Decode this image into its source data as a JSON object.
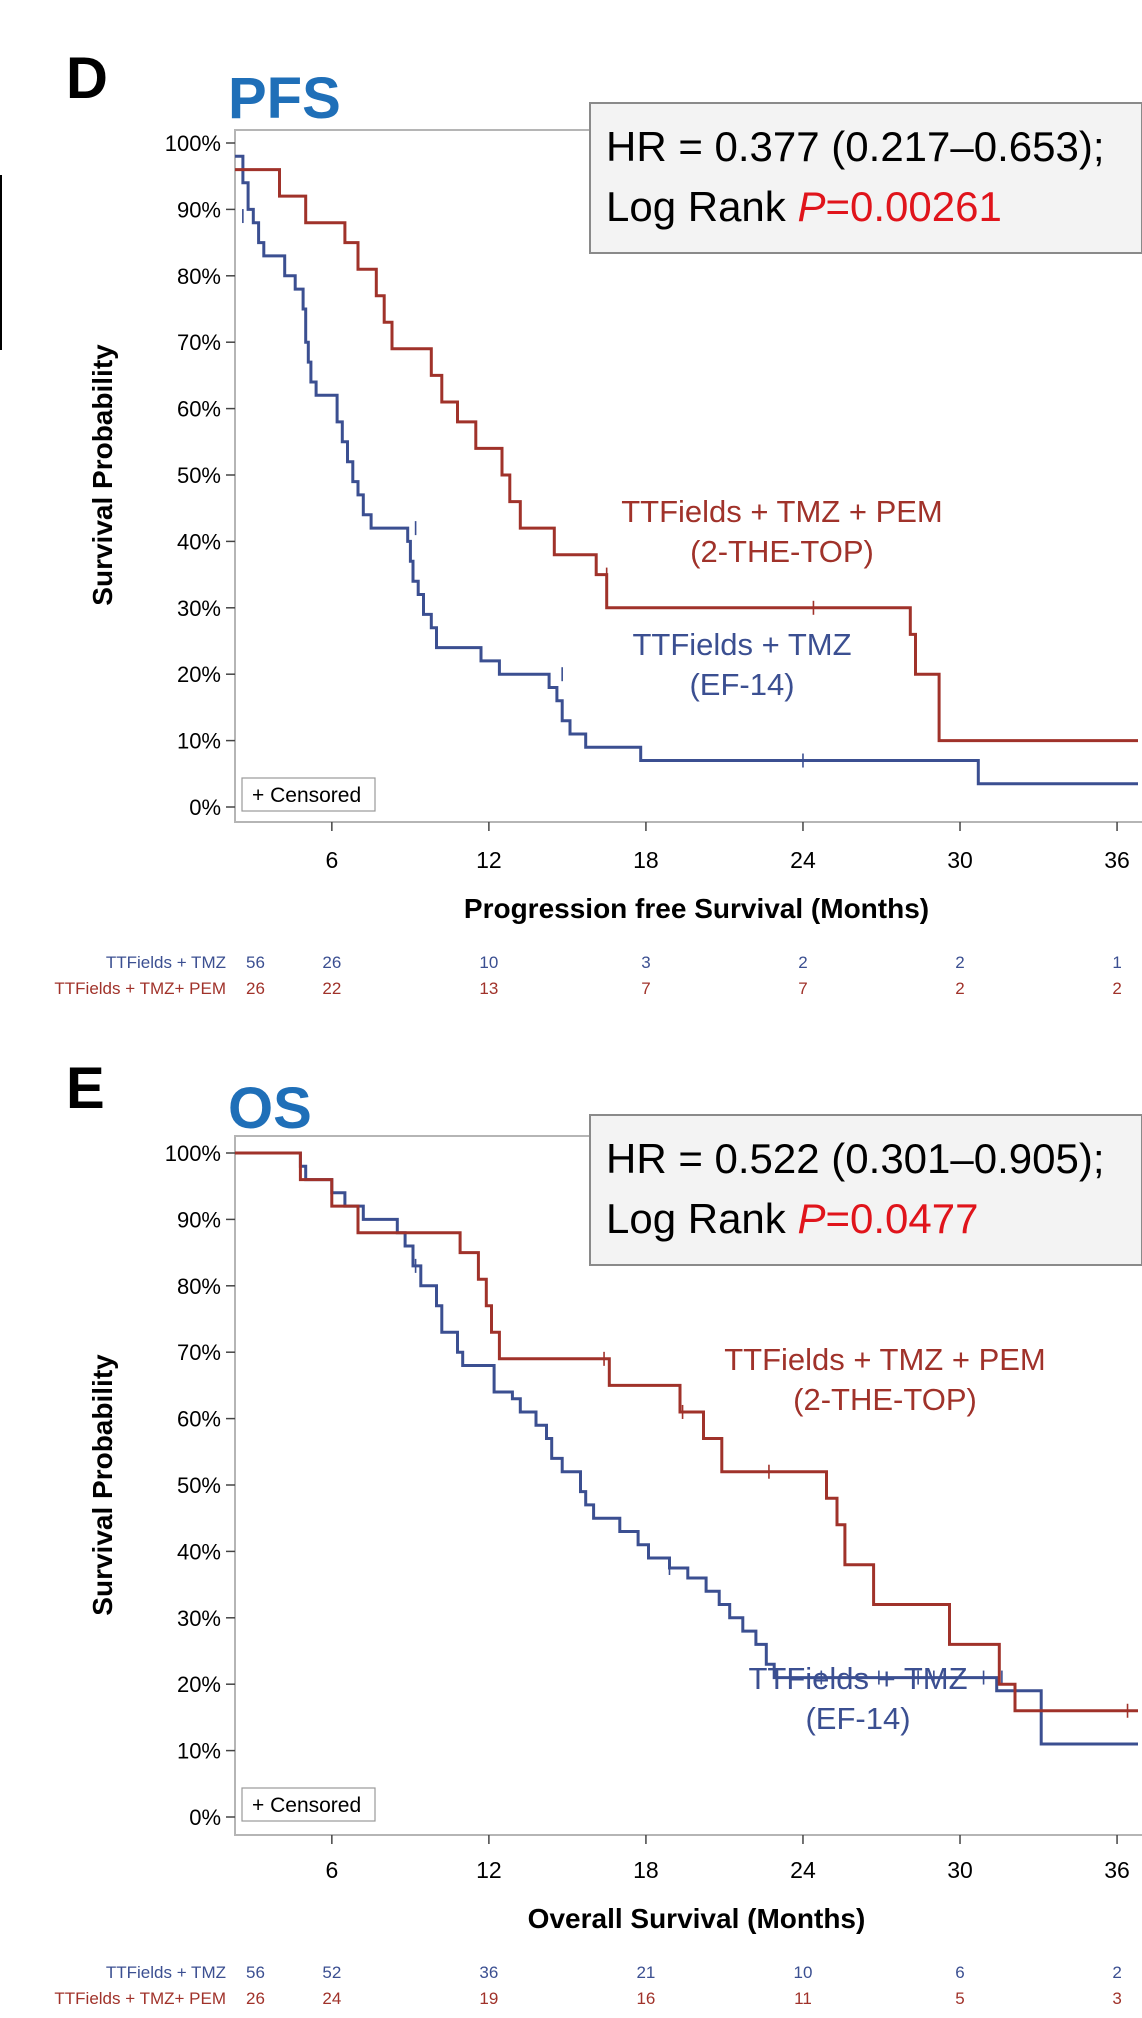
{
  "colors": {
    "series_blue": "#3b4f91",
    "series_red": "#a0322a",
    "title_blue": "#1f6fb8",
    "p_red": "#e0141b",
    "frame": "#b5b5b5",
    "box_fill": "#f3f3f3"
  },
  "chart_data": [
    {
      "type": "line",
      "panel_letter": "D",
      "title": "PFS",
      "xlabel": "Progression free Survival (Months)",
      "ylabel": "Survival Probability",
      "xlim": [
        2.3,
        36.8
      ],
      "ylim": [
        0,
        100
      ],
      "xticks": [
        6,
        12,
        18,
        24,
        30,
        36
      ],
      "yticks": [
        "0%",
        "10%",
        "20%",
        "30%",
        "40%",
        "50%",
        "60%",
        "70%",
        "80%",
        "90%",
        "100%"
      ],
      "grid": false,
      "stats": {
        "hr_text": "HR = 0.377 (0.217–0.653);",
        "logrank_label": "Log Rank ",
        "p_label": "P",
        "p_value": "=0.00261"
      },
      "censored_legend": "+ Censored",
      "series": [
        {
          "name": "TTFields + TMZ",
          "label_lines": [
            "TTFields + TMZ",
            "(EF-14)"
          ],
          "color": "#3b4f91",
          "steps": [
            [
              2.4,
              98
            ],
            [
              2.6,
              94
            ],
            [
              2.8,
              90
            ],
            [
              3.0,
              88
            ],
            [
              3.2,
              85
            ],
            [
              3.4,
              83
            ],
            [
              4.2,
              80
            ],
            [
              4.6,
              78
            ],
            [
              4.9,
              75
            ],
            [
              5.0,
              70
            ],
            [
              5.1,
              67
            ],
            [
              5.2,
              64
            ],
            [
              5.4,
              62
            ],
            [
              6.2,
              58
            ],
            [
              6.4,
              55
            ],
            [
              6.6,
              52
            ],
            [
              6.8,
              49
            ],
            [
              7.0,
              47
            ],
            [
              7.2,
              44
            ],
            [
              7.5,
              42
            ],
            [
              8.9,
              40
            ],
            [
              9.0,
              37
            ],
            [
              9.1,
              34
            ],
            [
              9.3,
              32
            ],
            [
              9.5,
              29
            ],
            [
              9.8,
              27
            ],
            [
              10.0,
              24
            ],
            [
              11.7,
              22
            ],
            [
              12.4,
              20
            ],
            [
              14.3,
              18
            ],
            [
              14.6,
              16
            ],
            [
              14.8,
              13
            ],
            [
              15.1,
              11
            ],
            [
              15.7,
              9
            ],
            [
              17.8,
              7
            ],
            [
              30.7,
              3.5
            ]
          ],
          "censored": [
            [
              2.6,
              89
            ],
            [
              9.2,
              42
            ],
            [
              14.8,
              20
            ],
            [
              24.0,
              7
            ]
          ],
          "end_x": 36.8
        },
        {
          "name": "TTFields + TMZ + PEM",
          "label_lines": [
            "TTFields + TMZ + PEM",
            "(2-THE-TOP)"
          ],
          "color": "#a0322a",
          "steps": [
            [
              2.3,
              96
            ],
            [
              4.0,
              92
            ],
            [
              5.0,
              88
            ],
            [
              6.5,
              85
            ],
            [
              7.0,
              81
            ],
            [
              7.7,
              77
            ],
            [
              8.0,
              73
            ],
            [
              8.3,
              69
            ],
            [
              9.8,
              65
            ],
            [
              10.2,
              61
            ],
            [
              10.8,
              58
            ],
            [
              11.5,
              54
            ],
            [
              12.5,
              50
            ],
            [
              12.8,
              46
            ],
            [
              13.2,
              42
            ],
            [
              14.5,
              38
            ],
            [
              16.1,
              35
            ],
            [
              16.5,
              30
            ],
            [
              28.1,
              26
            ],
            [
              28.3,
              20
            ],
            [
              29.2,
              10
            ]
          ],
          "censored": [
            [
              16.5,
              35
            ],
            [
              24.4,
              30
            ]
          ],
          "end_x": 36.8
        }
      ],
      "risk_table": {
        "rows": [
          {
            "label": "TTFields + TMZ",
            "values": [
              "56",
              "26",
              "10",
              "3",
              "2",
              "2",
              "1"
            ]
          },
          {
            "label": "TTFields + TMZ+ PEM",
            "values": [
              "26",
              "22",
              "13",
              "7",
              "7",
              "2",
              "2"
            ]
          }
        ]
      }
    },
    {
      "type": "line",
      "panel_letter": "E",
      "title": "OS",
      "xlabel": "Overall Survival (Months)",
      "ylabel": "Survival Probability",
      "xlim": [
        2.3,
        36.8
      ],
      "ylim": [
        0,
        100
      ],
      "xticks": [
        6,
        12,
        18,
        24,
        30,
        36
      ],
      "yticks": [
        "0%",
        "10%",
        "20%",
        "30%",
        "40%",
        "50%",
        "60%",
        "70%",
        "80%",
        "90%",
        "100%"
      ],
      "grid": false,
      "stats": {
        "hr_text": "HR = 0.522 (0.301–0.905);",
        "logrank_label": "Log Rank ",
        "p_label": "P",
        "p_value": "=0.0477"
      },
      "censored_legend": "+ Censored",
      "series": [
        {
          "name": "TTFields + TMZ",
          "label_lines": [
            "TTFields + TMZ",
            "(EF-14)"
          ],
          "color": "#3b4f91",
          "steps": [
            [
              2.3,
              100
            ],
            [
              4.8,
              98
            ],
            [
              5.0,
              96
            ],
            [
              6.0,
              94
            ],
            [
              6.5,
              92
            ],
            [
              7.2,
              90
            ],
            [
              8.5,
              88
            ],
            [
              8.8,
              86
            ],
            [
              9.1,
              83
            ],
            [
              9.4,
              80
            ],
            [
              10.0,
              77
            ],
            [
              10.2,
              73
            ],
            [
              10.8,
              70
            ],
            [
              11.0,
              68
            ],
            [
              12.2,
              64
            ],
            [
              12.9,
              63
            ],
            [
              13.2,
              61
            ],
            [
              13.8,
              59
            ],
            [
              14.2,
              57
            ],
            [
              14.4,
              54
            ],
            [
              14.8,
              52
            ],
            [
              15.5,
              49
            ],
            [
              15.7,
              47
            ],
            [
              16.0,
              45
            ],
            [
              17.0,
              43
            ],
            [
              17.7,
              41
            ],
            [
              18.1,
              39
            ],
            [
              18.9,
              37.5
            ],
            [
              19.6,
              36
            ],
            [
              20.3,
              34
            ],
            [
              20.8,
              32
            ],
            [
              21.2,
              30
            ],
            [
              21.7,
              28
            ],
            [
              22.2,
              26
            ],
            [
              22.6,
              23
            ],
            [
              22.9,
              21
            ],
            [
              31.4,
              19
            ],
            [
              33.1,
              11
            ]
          ],
          "censored": [
            [
              9.2,
              83
            ],
            [
              18.9,
              37.5
            ],
            [
              23.0,
              21
            ],
            [
              24.7,
              21
            ],
            [
              26.9,
              21
            ],
            [
              28.4,
              21
            ],
            [
              29.0,
              21
            ],
            [
              30.9,
              21
            ],
            [
              31.6,
              21
            ]
          ],
          "end_x": 36.8
        },
        {
          "name": "TTFields + TMZ + PEM",
          "label_lines": [
            "TTFields + TMZ + PEM",
            "(2-THE-TOP)"
          ],
          "color": "#a0322a",
          "steps": [
            [
              2.3,
              100
            ],
            [
              4.8,
              96
            ],
            [
              6.0,
              92
            ],
            [
              7.0,
              88
            ],
            [
              10.9,
              85
            ],
            [
              11.6,
              81
            ],
            [
              11.9,
              77
            ],
            [
              12.1,
              73
            ],
            [
              12.4,
              69
            ],
            [
              16.6,
              65
            ],
            [
              19.3,
              61
            ],
            [
              20.2,
              57
            ],
            [
              20.9,
              52
            ],
            [
              24.9,
              48
            ],
            [
              25.3,
              44
            ],
            [
              25.6,
              38
            ],
            [
              26.7,
              32
            ],
            [
              29.6,
              26
            ],
            [
              31.5,
              20
            ],
            [
              32.1,
              16
            ]
          ],
          "censored": [
            [
              16.4,
              69
            ],
            [
              19.4,
              61
            ],
            [
              22.7,
              52
            ],
            [
              36.4,
              16
            ]
          ],
          "end_x": 36.8
        }
      ],
      "risk_table": {
        "rows": [
          {
            "label": "TTFields + TMZ",
            "values": [
              "56",
              "52",
              "36",
              "21",
              "10",
              "6",
              "2"
            ]
          },
          {
            "label": "TTFields + TMZ+ PEM",
            "values": [
              "26",
              "24",
              "19",
              "16",
              "11",
              "5",
              "3"
            ]
          }
        ]
      }
    }
  ]
}
